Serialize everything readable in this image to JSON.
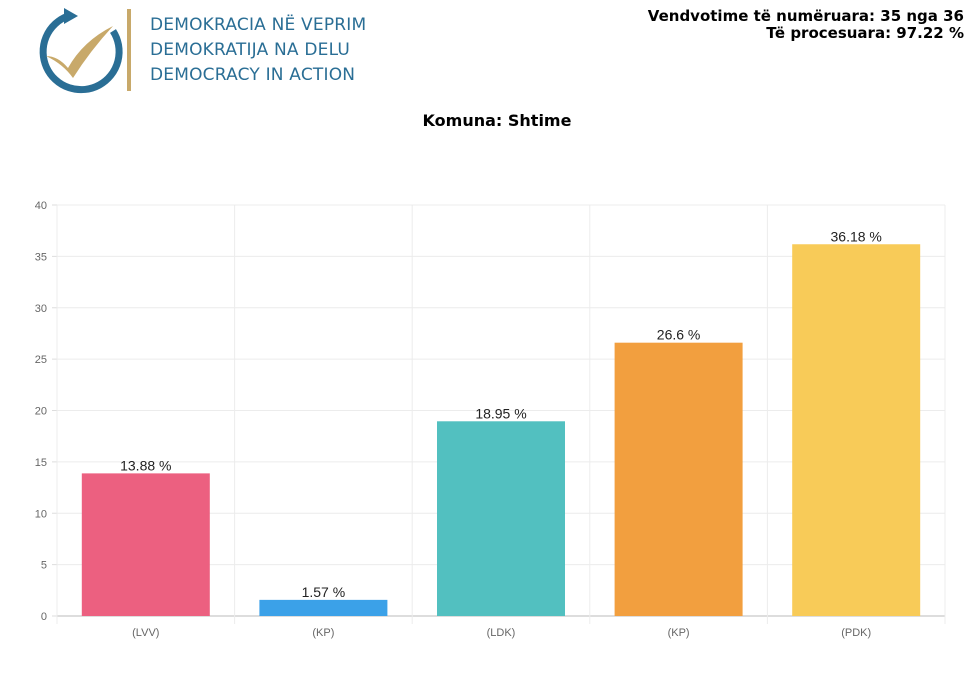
{
  "header": {
    "logo_lines": [
      "DEMOKRACIA NË VEPRIM",
      "DEMOKRATIJA NA DELU",
      "DEMOCRACY IN ACTION"
    ],
    "stats_counted": "Vendvotime të numëruara: 35 nga 36",
    "stats_processed": "Të procesuara: 97.22 %"
  },
  "chart_data": {
    "type": "bar",
    "title": "Komuna: Shtime",
    "categories": [
      "(LVV)",
      "(KP)",
      "(LDK)",
      "(KP)",
      "(PDK)"
    ],
    "values": [
      13.88,
      1.57,
      18.95,
      26.6,
      36.18
    ],
    "data_labels": [
      "13.88 %",
      "1.57 %",
      "18.95 %",
      "26.6 %",
      "36.18 %"
    ],
    "colors": [
      "#ec6080",
      "#3ba1e8",
      "#52c0c0",
      "#f29f3f",
      "#f8cb58"
    ],
    "ylim": [
      0,
      40
    ],
    "yticks": [
      "0",
      "5",
      "10",
      "15",
      "20",
      "25",
      "30",
      "35",
      "40"
    ],
    "grid": true,
    "legend": "none"
  }
}
